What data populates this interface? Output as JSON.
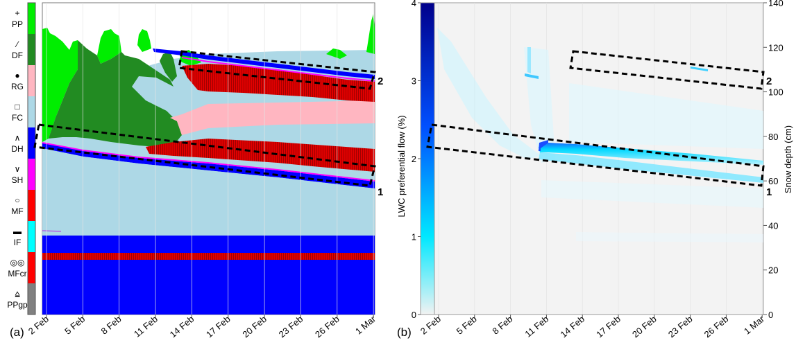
{
  "chart_data": [
    {
      "panel": "(a)",
      "type": "area",
      "x_ticks": [
        "2 Feb",
        "5 Feb",
        "8 Feb",
        "11 Feb",
        "14 Feb",
        "17 Feb",
        "20 Feb",
        "23 Feb",
        "26 Feb",
        "1 Mar"
      ],
      "legend": [
        {
          "symbol": "+",
          "label": "PP",
          "color": "#00ee00"
        },
        {
          "symbol": "⁄",
          "label": "DF",
          "color": "#228b22"
        },
        {
          "symbol": "●",
          "label": "RG",
          "color": "#ffb6c1"
        },
        {
          "symbol": "□",
          "label": "FC",
          "color": "#add8e6"
        },
        {
          "symbol": "∧",
          "label": "DH",
          "color": "#0000ff"
        },
        {
          "symbol": "∨",
          "label": "SH",
          "color": "#ff00ff"
        },
        {
          "symbol": "○",
          "label": "MF",
          "color": "#ff0000"
        },
        {
          "symbol": "▬",
          "label": "IF",
          "color": "#00ffff"
        },
        {
          "symbol": "◎◎",
          "label": "MFcr",
          "color": "#ff0000"
        },
        {
          "symbol": "⩠",
          "label": "PPgp",
          "color": "#808080"
        }
      ],
      "annotations": [
        "1",
        "2"
      ]
    },
    {
      "panel": "(b)",
      "type": "heatmap",
      "x_ticks": [
        "2 Feb",
        "5 Feb",
        "8 Feb",
        "11 Feb",
        "14 Feb",
        "17 Feb",
        "20 Feb",
        "23 Feb",
        "26 Feb",
        "1 Mar"
      ],
      "colorbar": {
        "label": "LWC preferential flow (%)",
        "min": 0,
        "max": 4,
        "ticks": [
          "0",
          "1",
          "2",
          "3",
          "4"
        ],
        "colors": [
          "#f0f0f0",
          "#00e5ff",
          "#00008b"
        ]
      },
      "y_right": {
        "label": "Snow depth (cm)",
        "min": 0,
        "max": 140,
        "ticks": [
          "0",
          "20",
          "40",
          "60",
          "80",
          "100",
          "120",
          "140"
        ]
      },
      "annotations": [
        "1",
        "2"
      ]
    }
  ]
}
